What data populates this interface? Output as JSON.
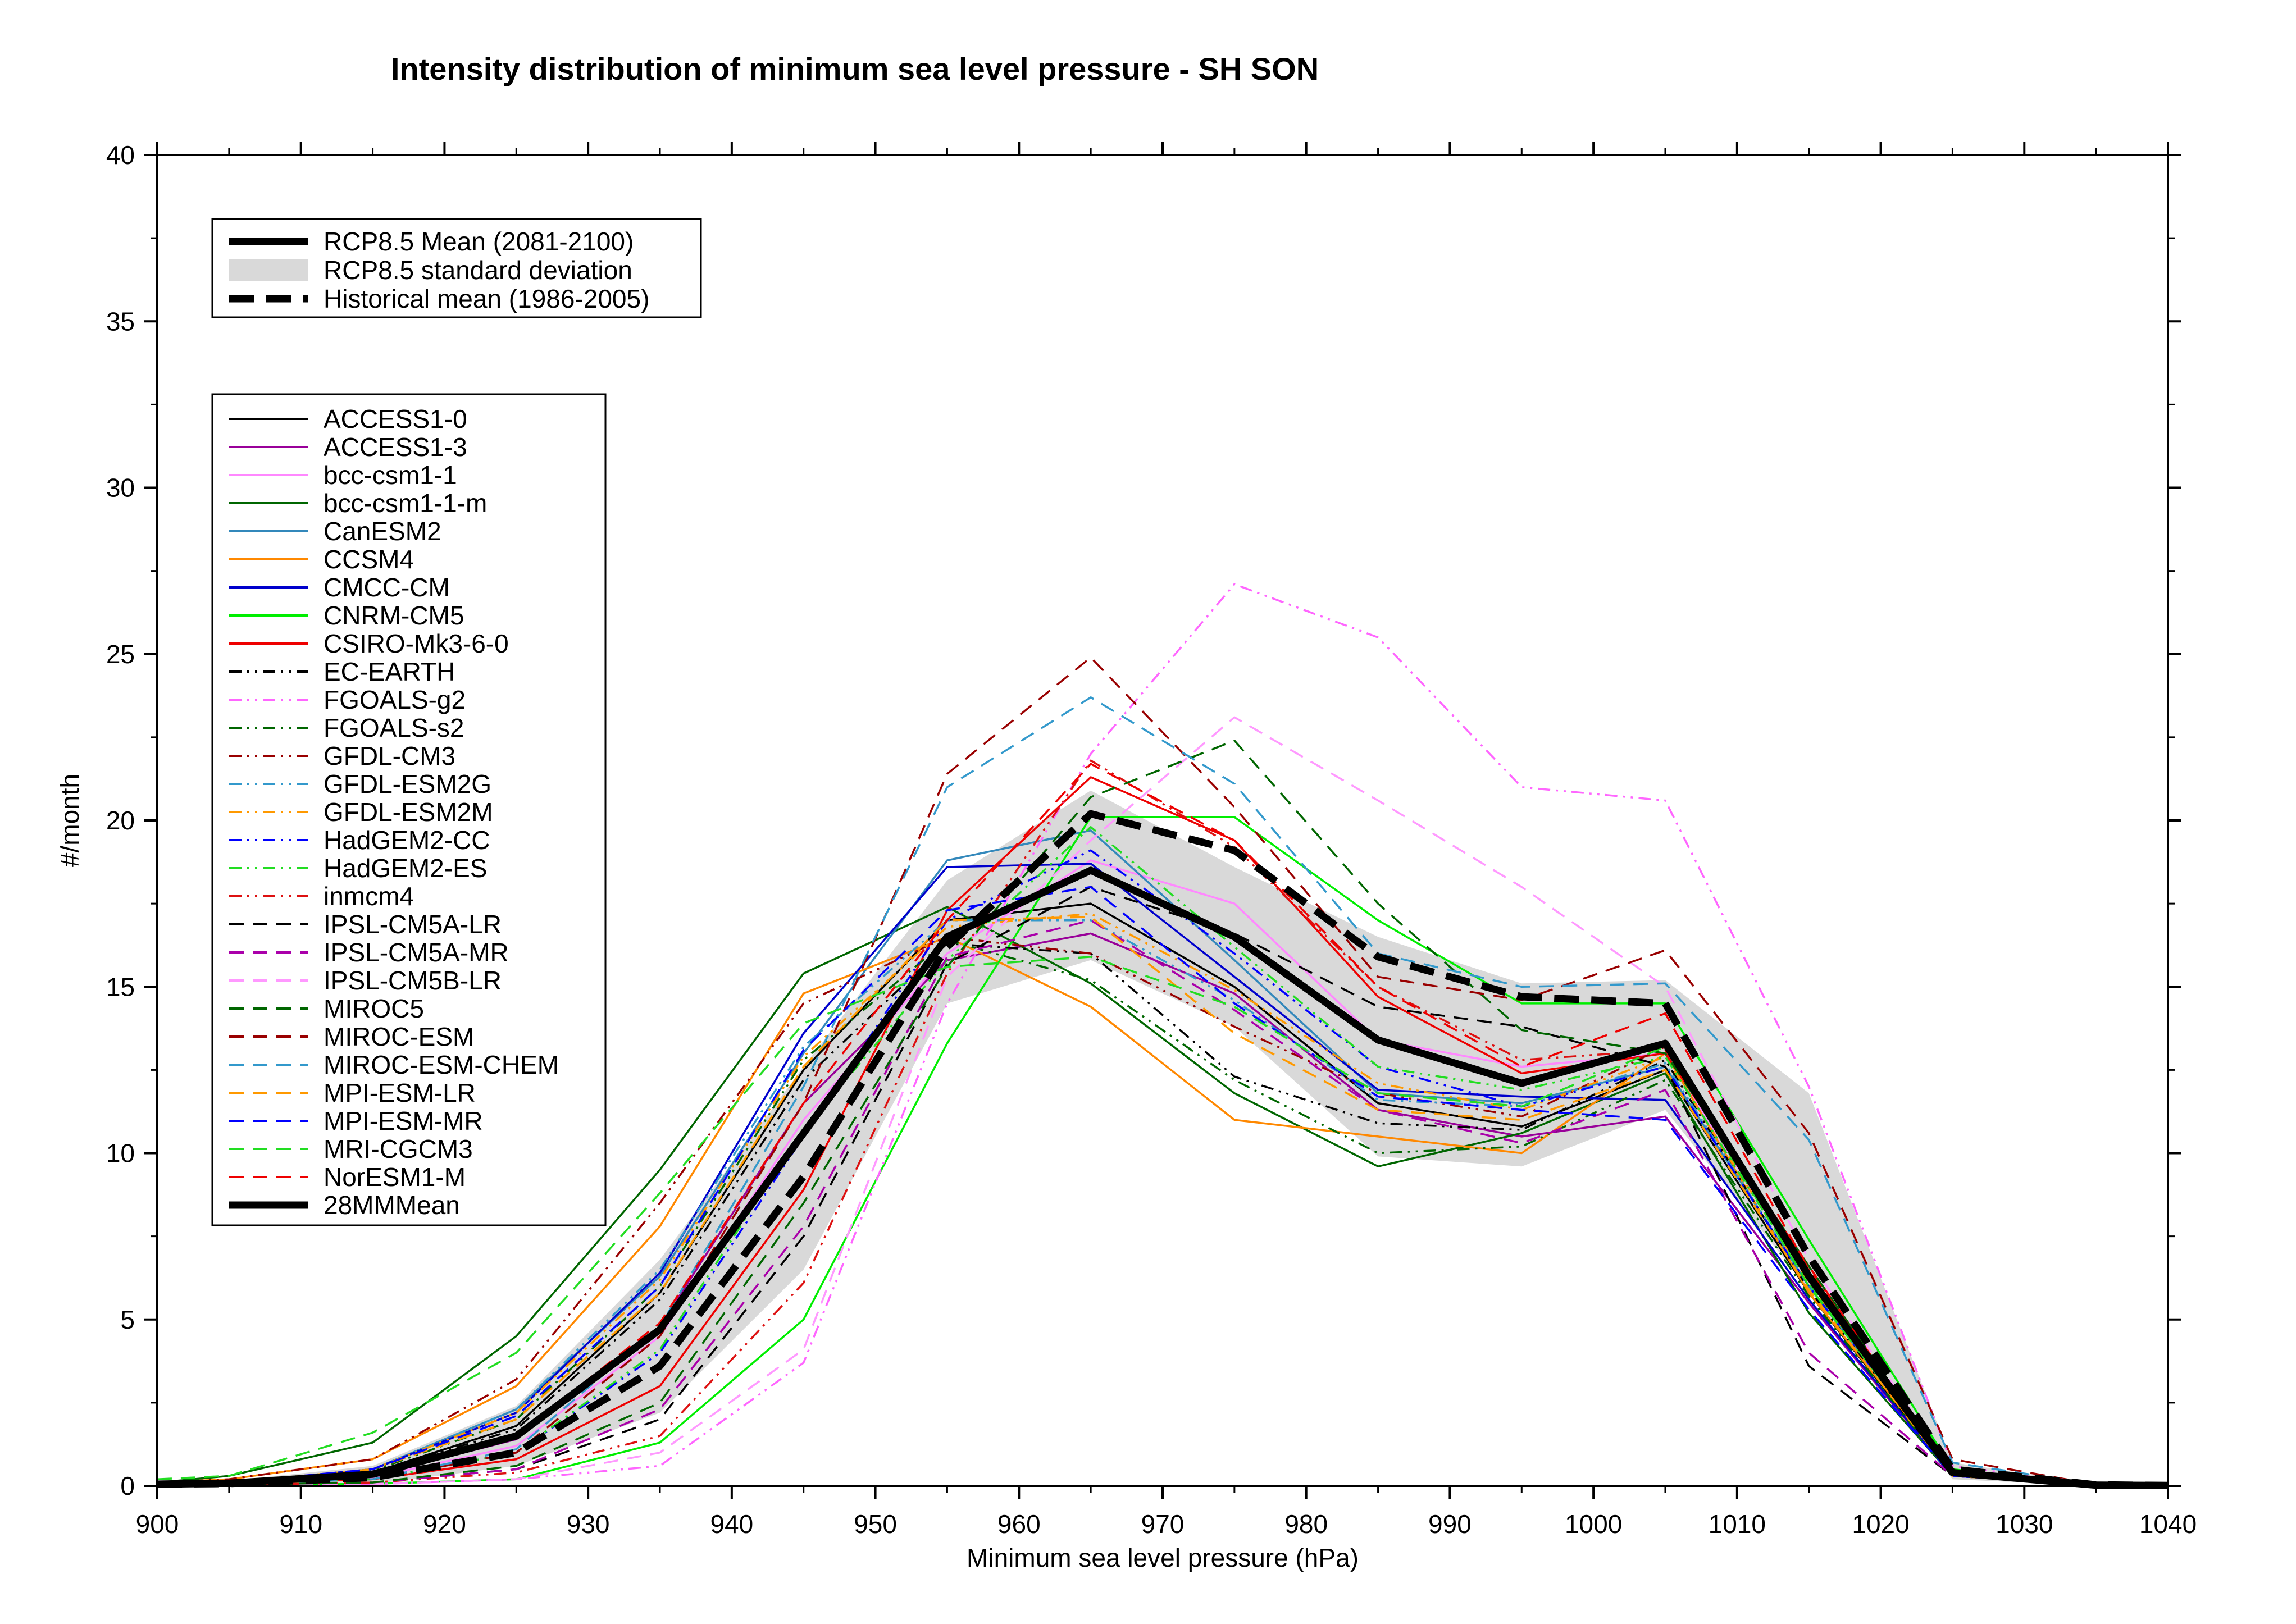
{
  "chart_data": {
    "type": "line",
    "title": "Intensity distribution of minimum sea level pressure - SH SON",
    "xlabel": "Minimum sea level pressure (hPa)",
    "ylabel": "#/month",
    "xlim": [
      900,
      1040
    ],
    "ylim": [
      0,
      40
    ],
    "xticks": [
      900,
      910,
      920,
      930,
      940,
      950,
      960,
      970,
      980,
      990,
      1000,
      1010,
      1020,
      1030,
      1040
    ],
    "yticks": [
      0,
      5,
      10,
      15,
      20,
      25,
      30,
      35,
      40
    ],
    "grid": false,
    "x": [
      900,
      905,
      915,
      925,
      935,
      945,
      955,
      965,
      975,
      985,
      995,
      1005,
      1015,
      1025,
      1035,
      1040
    ],
    "legend_top": {
      "placement": "upper-left",
      "entries": [
        {
          "label": "RCP8.5 Mean (2081-2100)",
          "style": "thick-solid"
        },
        {
          "label": "RCP8.5 standard deviation",
          "style": "band"
        },
        {
          "label": "Historical mean (1986-2005)",
          "style": "thick-dashed"
        }
      ]
    },
    "legend_models_placement": "left",
    "std_band": {
      "name": "RCP8.5 standard deviation",
      "color": "#d9d9d9",
      "upper": [
        0.1,
        0.15,
        0.6,
        2.4,
        6.8,
        12.6,
        18.2,
        20.9,
        18.6,
        16.5,
        15.1,
        15.2,
        11.8,
        0.7,
        0.05,
        0.02
      ],
      "lower": [
        0.0,
        0.02,
        0.05,
        0.6,
        2.2,
        6.5,
        14.5,
        15.8,
        13.8,
        9.9,
        9.6,
        11.3,
        5.9,
        0.2,
        0.0,
        0.0
      ]
    },
    "rcp85_mean": {
      "name": "RCP8.5 Mean (2081-2100)",
      "values": [
        0.05,
        0.08,
        0.35,
        1.5,
        4.7,
        10.6,
        16.5,
        18.5,
        16.5,
        13.4,
        12.1,
        13.3,
        6.3,
        0.4,
        0.02,
        0.01
      ]
    },
    "historical_mean": {
      "name": "Historical mean (1986-2005)",
      "values": [
        0.05,
        0.07,
        0.25,
        1.0,
        3.6,
        9.3,
        16.2,
        20.2,
        19.1,
        15.9,
        14.7,
        14.5,
        6.9,
        0.5,
        0.03,
        0.01
      ]
    },
    "series": [
      {
        "name": "ACCESS1-0",
        "color": "#000000",
        "dash": "solid",
        "values": [
          0.05,
          0.1,
          0.4,
          1.8,
          5.8,
          12.5,
          17.0,
          17.5,
          15.0,
          11.5,
          10.8,
          12.5,
          5.8,
          0.3,
          0.02,
          0.01
        ]
      },
      {
        "name": "ACCESS1-3",
        "color": "#990099",
        "dash": "solid",
        "values": [
          0.05,
          0.08,
          0.3,
          1.4,
          4.8,
          11.5,
          15.8,
          16.6,
          14.8,
          11.3,
          10.5,
          11.1,
          5.5,
          0.3,
          0.02,
          0.01
        ]
      },
      {
        "name": "bcc-csm1-1",
        "color": "#ff88ff",
        "dash": "solid",
        "values": [
          0.05,
          0.08,
          0.25,
          1.2,
          4.5,
          11.0,
          16.0,
          18.8,
          17.5,
          13.4,
          12.6,
          13.0,
          6.2,
          0.4,
          0.02,
          0.01
        ]
      },
      {
        "name": "bcc-csm1-1-m",
        "color": "#006600",
        "dash": "solid",
        "values": [
          0.1,
          0.3,
          1.3,
          4.5,
          9.5,
          15.4,
          17.4,
          15.1,
          11.8,
          9.6,
          10.6,
          12.4,
          5.2,
          0.3,
          0.02,
          0.01
        ]
      },
      {
        "name": "CanESM2",
        "color": "#3388bb",
        "dash": "solid",
        "values": [
          0.05,
          0.1,
          0.5,
          2.3,
          6.3,
          13.0,
          18.8,
          19.7,
          15.8,
          11.8,
          11.5,
          12.6,
          6.0,
          0.4,
          0.02,
          0.01
        ]
      },
      {
        "name": "CCSM4",
        "color": "#ff8800",
        "dash": "solid",
        "values": [
          0.1,
          0.2,
          0.8,
          3.0,
          7.8,
          14.8,
          16.5,
          14.4,
          11.0,
          10.5,
          10.0,
          13.0,
          5.8,
          0.4,
          0.02,
          0.01
        ]
      },
      {
        "name": "CMCC-CM",
        "color": "#0000cc",
        "dash": "solid",
        "values": [
          0.05,
          0.1,
          0.5,
          2.2,
          6.4,
          13.6,
          18.6,
          18.7,
          15.3,
          11.9,
          11.7,
          11.6,
          5.6,
          0.3,
          0.02,
          0.01
        ]
      },
      {
        "name": "CNRM-CM5",
        "color": "#00ee00",
        "dash": "solid",
        "values": [
          0.02,
          0.03,
          0.06,
          0.2,
          1.3,
          5.0,
          13.3,
          20.1,
          20.1,
          17.0,
          14.5,
          14.5,
          7.4,
          0.5,
          0.03,
          0.01
        ]
      },
      {
        "name": "CSIRO-Mk3-6-0",
        "color": "#ee0000",
        "dash": "solid",
        "values": [
          0.03,
          0.05,
          0.2,
          0.8,
          3.0,
          8.9,
          17.3,
          21.3,
          19.4,
          14.7,
          12.4,
          13.0,
          6.6,
          0.4,
          0.02,
          0.01
        ]
      },
      {
        "name": "EC-EARTH",
        "color": "#000000",
        "dash": "dashdotdot",
        "values": [
          0.05,
          0.1,
          0.4,
          1.7,
          5.6,
          12.2,
          16.3,
          16.0,
          12.3,
          10.9,
          10.7,
          12.8,
          5.9,
          0.4,
          0.02,
          0.01
        ]
      },
      {
        "name": "FGOALS-g2",
        "color": "#ff66ff",
        "dash": "dashdotdot",
        "values": [
          0.01,
          0.02,
          0.05,
          0.2,
          0.6,
          3.7,
          14.5,
          22.0,
          27.1,
          25.5,
          21.0,
          20.6,
          12.0,
          0.6,
          0.03,
          0.01
        ]
      },
      {
        "name": "FGOALS-s2",
        "color": "#006600",
        "dash": "dashdotdot",
        "values": [
          0.05,
          0.1,
          0.45,
          2.0,
          6.0,
          12.8,
          16.4,
          15.2,
          12.2,
          10.0,
          10.2,
          12.2,
          5.7,
          0.3,
          0.02,
          0.01
        ]
      },
      {
        "name": "GFDL-CM3",
        "color": "#990000",
        "dash": "dashdotdot",
        "values": [
          0.1,
          0.2,
          0.8,
          3.2,
          8.5,
          14.5,
          16.5,
          16.0,
          13.8,
          11.8,
          11.1,
          13.2,
          6.3,
          0.4,
          0.02,
          0.01
        ]
      },
      {
        "name": "GFDL-ESM2G",
        "color": "#3399cc",
        "dash": "dashdotdot",
        "values": [
          0.05,
          0.1,
          0.5,
          2.3,
          6.5,
          13.2,
          17.0,
          17.0,
          14.6,
          11.6,
          11.4,
          12.7,
          6.0,
          0.4,
          0.02,
          0.01
        ]
      },
      {
        "name": "GFDL-ESM2M",
        "color": "#ff9900",
        "dash": "dashdotdot",
        "values": [
          0.05,
          0.1,
          0.5,
          2.2,
          6.2,
          12.9,
          16.8,
          17.2,
          14.9,
          12.1,
          11.3,
          12.9,
          6.1,
          0.4,
          0.02,
          0.01
        ]
      },
      {
        "name": "HadGEM2-CC",
        "color": "#0000ff",
        "dash": "dashdotdot",
        "values": [
          0.03,
          0.05,
          0.2,
          1.0,
          4.0,
          10.5,
          17.0,
          19.1,
          16.0,
          12.6,
          11.4,
          12.6,
          6.0,
          0.4,
          0.02,
          0.01
        ]
      },
      {
        "name": "HadGEM2-ES",
        "color": "#22dd22",
        "dash": "dashdotdot",
        "values": [
          0.03,
          0.05,
          0.2,
          1.0,
          4.1,
          10.7,
          15.8,
          19.8,
          16.2,
          12.6,
          11.9,
          12.9,
          6.1,
          0.4,
          0.02,
          0.01
        ]
      },
      {
        "name": "inmcm4",
        "color": "#dd1111",
        "dash": "dashdotdot",
        "values": [
          0.02,
          0.03,
          0.1,
          0.4,
          1.5,
          6.1,
          15.4,
          21.8,
          19.2,
          15.0,
          12.8,
          13.1,
          6.5,
          0.4,
          0.02,
          0.01
        ]
      },
      {
        "name": "IPSL-CM5A-LR",
        "color": "#000000",
        "dash": "dashed",
        "values": [
          0.02,
          0.04,
          0.1,
          0.5,
          2.0,
          7.5,
          15.7,
          18.0,
          16.6,
          14.4,
          13.8,
          12.6,
          3.6,
          0.3,
          0.02,
          0.01
        ]
      },
      {
        "name": "IPSL-CM5A-MR",
        "color": "#aa00aa",
        "dash": "dashed",
        "values": [
          0.02,
          0.04,
          0.1,
          0.5,
          2.3,
          7.8,
          15.9,
          17.0,
          14.3,
          11.3,
          10.3,
          11.9,
          4.0,
          0.3,
          0.02,
          0.01
        ]
      },
      {
        "name": "IPSL-CM5B-LR",
        "color": "#ff99ff",
        "dash": "dashed",
        "values": [
          0.01,
          0.02,
          0.05,
          0.2,
          1.0,
          4.1,
          15.3,
          19.4,
          23.1,
          20.6,
          18.0,
          15.0,
          6.8,
          0.4,
          0.02,
          0.01
        ]
      },
      {
        "name": "MIROC5",
        "color": "#006600",
        "dash": "dashed",
        "values": [
          0.02,
          0.04,
          0.1,
          0.6,
          2.5,
          8.5,
          15.6,
          20.7,
          22.4,
          17.5,
          13.7,
          13.0,
          6.6,
          0.4,
          0.02,
          0.01
        ]
      },
      {
        "name": "MIROC-ESM",
        "color": "#990000",
        "dash": "dashed",
        "values": [
          0.02,
          0.05,
          0.2,
          1.0,
          4.5,
          11.5,
          21.4,
          24.9,
          20.4,
          15.3,
          14.6,
          16.1,
          10.6,
          0.8,
          0.04,
          0.02
        ]
      },
      {
        "name": "MIROC-ESM-CHEM",
        "color": "#3399cc",
        "dash": "dashed",
        "values": [
          0.02,
          0.05,
          0.2,
          1.1,
          4.8,
          12.0,
          21.0,
          23.7,
          21.1,
          16.0,
          15.0,
          15.1,
          10.4,
          0.7,
          0.04,
          0.02
        ]
      },
      {
        "name": "MPI-ESM-LR",
        "color": "#ff9900",
        "dash": "dashed",
        "values": [
          0.05,
          0.1,
          0.5,
          2.0,
          5.8,
          12.6,
          17.0,
          17.1,
          13.6,
          11.3,
          11.0,
          12.5,
          5.9,
          0.3,
          0.02,
          0.01
        ]
      },
      {
        "name": "MPI-ESM-MR",
        "color": "#0000ff",
        "dash": "dashed",
        "values": [
          0.05,
          0.1,
          0.5,
          2.1,
          6.0,
          13.1,
          17.3,
          18.0,
          14.5,
          11.7,
          11.3,
          11.0,
          5.3,
          0.3,
          0.02,
          0.01
        ]
      },
      {
        "name": "MRI-CGCM3",
        "color": "#22dd22",
        "dash": "dashed",
        "values": [
          0.2,
          0.3,
          1.6,
          4.0,
          8.8,
          13.9,
          15.6,
          15.9,
          14.4,
          11.8,
          11.4,
          13.2,
          6.0,
          0.4,
          0.02,
          0.01
        ]
      },
      {
        "name": "NorESM1-M",
        "color": "#ee0000",
        "dash": "dashed",
        "values": [
          0.03,
          0.06,
          0.3,
          1.5,
          4.9,
          11.5,
          17.0,
          21.7,
          19.4,
          15.0,
          12.6,
          14.2,
          6.5,
          0.4,
          0.02,
          0.01
        ]
      }
    ],
    "multi_model_mean": {
      "name": "28MMMean",
      "color": "#000000"
    }
  }
}
